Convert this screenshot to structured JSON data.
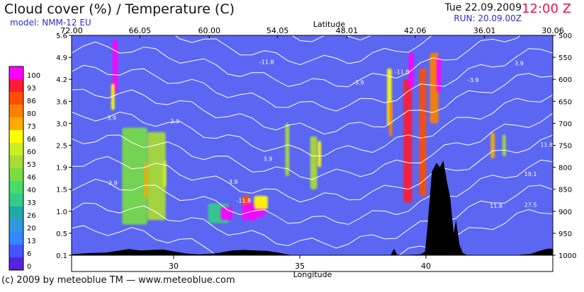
{
  "header": {
    "title": "Cloud cover (%) / Temperature (C)",
    "model": "model: NMM-12 EU",
    "date": "Tue 22.09.2009",
    "hour": "12:00 Z",
    "run": "RUN: 20.09.00Z"
  },
  "footer": {
    "copyright": "(c) 2009 by meteoblue TM — www.meteoblue.com"
  },
  "colors": {
    "background": "#5b67f2",
    "terrain": "#000000",
    "isotherm": "#ffffff",
    "hour": "#ee1144",
    "subtitle": "#2b2bd6"
  },
  "chart_data": {
    "type": "heatmap",
    "title": "Cloud cover (%) / Temperature (C)",
    "colorbar": {
      "levels": [
        "100",
        "93",
        "86",
        "80",
        "73",
        "66",
        "60",
        "53",
        "46",
        "40",
        "33",
        "26",
        "20",
        "13",
        "6",
        "0"
      ],
      "colors": [
        "#ff00ff",
        "#ff1a33",
        "#ff4d00",
        "#ff8000",
        "#ffaa00",
        "#ffff00",
        "#ccee22",
        "#aadd33",
        "#77dd44",
        "#44dd66",
        "#33cc88",
        "#22aaaa",
        "#3399dd",
        "#3388ff",
        "#4455ff",
        "#5522dd"
      ]
    },
    "x_top": {
      "label": "Latitude",
      "ticks": [
        "72.00",
        "66.05",
        "60.00",
        "54.05",
        "48.01",
        "42.06",
        "36.01",
        "30.06"
      ]
    },
    "x_bottom": {
      "label": "Longitude",
      "ticks": [
        "30",
        "35",
        "40"
      ]
    },
    "y_left": {
      "ticks": [
        "5.6",
        "4.9",
        "4.2",
        "3.6",
        "3.0",
        "2.5",
        "1.9",
        "1.5",
        "1.0",
        "0.5",
        "0.1"
      ]
    },
    "y_right": {
      "ticks": [
        "500",
        "550",
        "600",
        "650",
        "700",
        "750",
        "800",
        "850",
        "900",
        "950",
        "1000"
      ]
    },
    "isotherm_labels": [
      "-11.8",
      "-3.9",
      "3.9",
      "3.9",
      "-11.8",
      "-3.9",
      "3.9",
      "3.9",
      "11.8",
      "19.1",
      "27.5",
      "11.8",
      "3.9",
      "-11.8",
      "-3.9"
    ],
    "clouds": [
      {
        "x": 68.2,
        "p": 570,
        "w": 0.45,
        "dp": 120,
        "v": 100
      },
      {
        "x": 68.4,
        "p": 640,
        "w": 0.3,
        "dp": 60,
        "v": 66
      },
      {
        "x": 66.5,
        "p": 820,
        "w": 2.2,
        "dp": 220,
        "v": 46
      },
      {
        "x": 64.6,
        "p": 820,
        "w": 1.6,
        "dp": 200,
        "v": 53
      },
      {
        "x": 65.5,
        "p": 830,
        "w": 0.3,
        "dp": 80,
        "v": 73
      },
      {
        "x": 63.9,
        "p": 815,
        "w": 0.3,
        "dp": 60,
        "v": 60
      },
      {
        "x": 59.2,
        "p": 905,
        "w": 1.8,
        "dp": 45,
        "v": 33
      },
      {
        "x": 58.5,
        "p": 905,
        "w": 1.0,
        "dp": 30,
        "v": 100
      },
      {
        "x": 56.5,
        "p": 900,
        "w": 1.3,
        "dp": 40,
        "v": 100
      },
      {
        "x": 55.6,
        "p": 895,
        "w": 0.9,
        "dp": 35,
        "v": 100
      },
      {
        "x": 56.8,
        "p": 875,
        "w": 0.7,
        "dp": 20,
        "v": 86
      },
      {
        "x": 55.5,
        "p": 880,
        "w": 1.2,
        "dp": 30,
        "v": 66
      },
      {
        "x": 53.2,
        "p": 760,
        "w": 0.35,
        "dp": 120,
        "v": 53
      },
      {
        "x": 50.9,
        "p": 790,
        "w": 0.6,
        "dp": 120,
        "v": 53
      },
      {
        "x": 50.4,
        "p": 770,
        "w": 0.3,
        "dp": 60,
        "v": 66
      },
      {
        "x": 42.7,
        "p": 740,
        "w": 0.75,
        "dp": 280,
        "v": 93
      },
      {
        "x": 42.4,
        "p": 580,
        "w": 0.45,
        "dp": 80,
        "v": 100
      },
      {
        "x": 41.4,
        "p": 720,
        "w": 0.6,
        "dp": 290,
        "v": 86
      },
      {
        "x": 40.4,
        "p": 620,
        "w": 0.75,
        "dp": 160,
        "v": 80
      },
      {
        "x": 40.0,
        "p": 590,
        "w": 0.4,
        "dp": 80,
        "v": 100
      },
      {
        "x": 44.3,
        "p": 640,
        "w": 0.4,
        "dp": 130,
        "v": 66
      },
      {
        "x": 44.2,
        "p": 690,
        "w": 0.3,
        "dp": 80,
        "v": 80
      },
      {
        "x": 35.3,
        "p": 750,
        "w": 0.35,
        "dp": 60,
        "v": 73
      },
      {
        "x": 34.3,
        "p": 750,
        "w": 0.3,
        "dp": 50,
        "v": 53
      }
    ],
    "terrain_profile": [
      [
        72.0,
        998
      ],
      [
        71.5,
        997
      ],
      [
        70.5,
        995
      ],
      [
        69.0,
        994
      ],
      [
        68.0,
        990
      ],
      [
        67.0,
        986
      ],
      [
        66.0,
        989
      ],
      [
        65.0,
        988
      ],
      [
        64.0,
        987
      ],
      [
        63.0,
        992
      ],
      [
        62.0,
        996
      ],
      [
        61.0,
        998
      ],
      [
        60.0,
        997
      ],
      [
        59.0,
        994
      ],
      [
        58.0,
        989
      ],
      [
        57.0,
        988
      ],
      [
        56.0,
        989
      ],
      [
        55.0,
        990
      ],
      [
        54.0,
        994
      ],
      [
        53.0,
        999
      ],
      [
        52.0,
        1000
      ],
      [
        51.0,
        1000
      ],
      [
        50.0,
        1000
      ],
      [
        49.0,
        1000
      ],
      [
        48.0,
        1000
      ],
      [
        47.0,
        1000
      ],
      [
        46.0,
        1000
      ],
      [
        45.0,
        1000
      ],
      [
        44.2,
        1000
      ],
      [
        43.9,
        985
      ],
      [
        43.6,
        1000
      ],
      [
        43.0,
        1000
      ],
      [
        42.4,
        999
      ],
      [
        41.6,
        998
      ],
      [
        41.2,
        992
      ],
      [
        41.0,
        940
      ],
      [
        40.6,
        810
      ],
      [
        40.2,
        790
      ],
      [
        39.9,
        800
      ],
      [
        39.6,
        785
      ],
      [
        39.3,
        830
      ],
      [
        39.0,
        870
      ],
      [
        38.7,
        950
      ],
      [
        38.5,
        920
      ],
      [
        38.2,
        975
      ],
      [
        37.9,
        995
      ],
      [
        37.5,
        1000
      ],
      [
        36.5,
        1000
      ],
      [
        35.0,
        1000
      ],
      [
        33.5,
        1000
      ],
      [
        32.0,
        997
      ],
      [
        31.2,
        990
      ],
      [
        30.5,
        985
      ],
      [
        30.06,
        985
      ]
    ]
  }
}
